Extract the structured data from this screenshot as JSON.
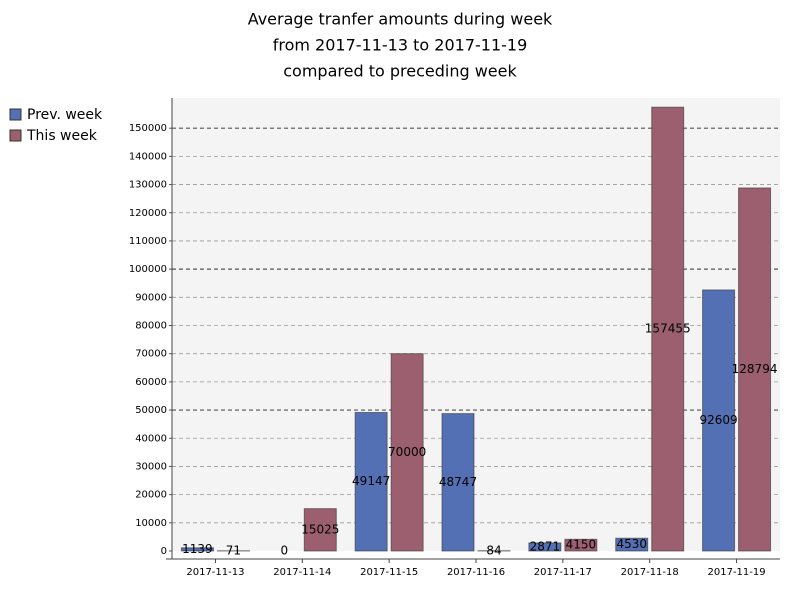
{
  "chart_data": {
    "type": "bar",
    "title": [
      "Average tranfer amounts during week",
      "from 2017-11-13 to 2017-11-19",
      "compared to preceding week"
    ],
    "categories": [
      "2017-11-13",
      "2017-11-14",
      "2017-11-15",
      "2017-11-16",
      "2017-11-17",
      "2017-11-18",
      "2017-11-19"
    ],
    "series": [
      {
        "name": "Prev. week",
        "color": "#5470b4",
        "values": [
          1139,
          0,
          49147,
          48747,
          2871,
          4530,
          92609
        ]
      },
      {
        "name": "This week",
        "color": "#9c5f6f",
        "values": [
          71,
          15025,
          70000,
          84,
          4150,
          157455,
          128794
        ]
      }
    ],
    "ylim": [
      0,
      160000
    ],
    "yticks": [
      0,
      10000,
      20000,
      30000,
      40000,
      50000,
      60000,
      70000,
      80000,
      90000,
      100000,
      110000,
      120000,
      130000,
      140000,
      150000
    ],
    "grid": true,
    "legend": "top-left"
  }
}
